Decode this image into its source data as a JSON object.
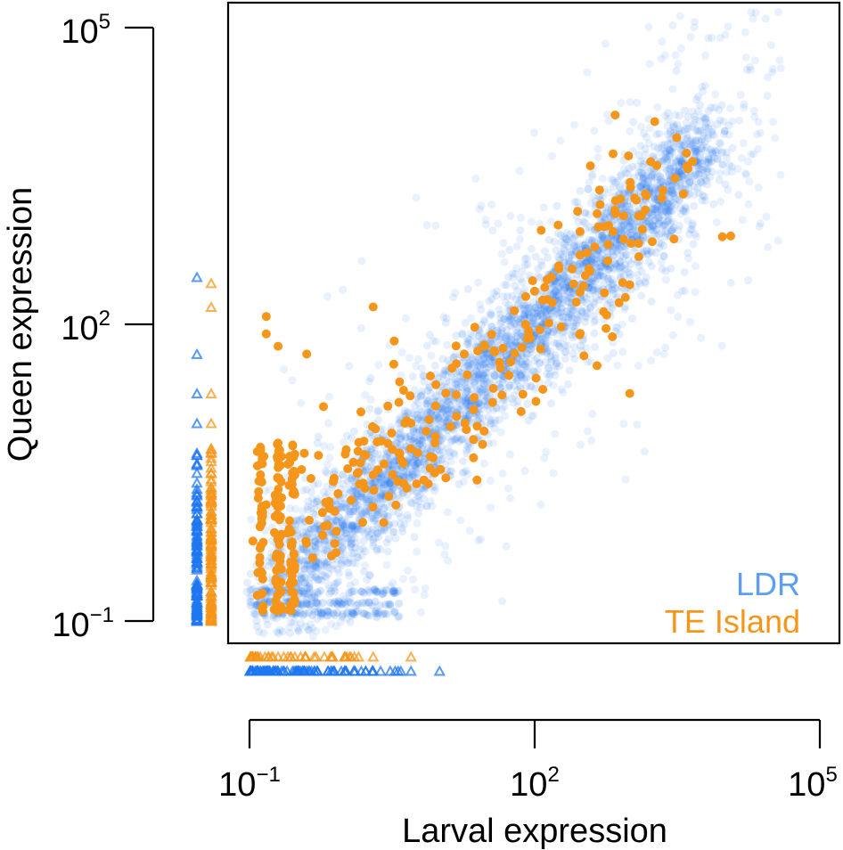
{
  "chart_data": {
    "type": "scatter",
    "title": "",
    "xlabel": "Larval expression",
    "ylabel": "Queen expression",
    "x_scale": "log10",
    "y_scale": "log10",
    "xlim": [
      0.1,
      100000
    ],
    "ylim": [
      0.1,
      100000
    ],
    "x_ticks": [
      {
        "value": 0.1,
        "base": "10",
        "exp": "−1"
      },
      {
        "value": 100,
        "base": "10",
        "exp": "2"
      },
      {
        "value": 100000,
        "base": "10",
        "exp": "5"
      }
    ],
    "y_ticks": [
      {
        "value": 0.1,
        "base": "10",
        "exp": "−1"
      },
      {
        "value": 100,
        "base": "10",
        "exp": "2"
      },
      {
        "value": 100000,
        "base": "10",
        "exp": "5"
      }
    ],
    "grid": false,
    "legend_position": "bottom-right",
    "series": [
      {
        "name": "LDR",
        "color": "#1f77f0",
        "marker": "circle",
        "alpha": 0.15,
        "points": [
          [
            0.5,
            0.4
          ],
          [
            1.2,
            0.9
          ],
          [
            3,
            2.5
          ],
          [
            8,
            7
          ],
          [
            20,
            18
          ],
          [
            50,
            40
          ],
          [
            120,
            100
          ],
          [
            300,
            250
          ],
          [
            800,
            700
          ],
          [
            2000,
            1800
          ],
          [
            5000,
            4500
          ],
          [
            10000,
            9000
          ]
        ],
        "zero_larval_queen_values": [
          0.12,
          0.2,
          0.5,
          1,
          2,
          5,
          10,
          20,
          50,
          300
        ],
        "zero_queen_larval_values": [
          0.12,
          0.2,
          0.4,
          1,
          2,
          5,
          10
        ]
      },
      {
        "name": "TE Island",
        "color": "#f5951a",
        "marker": "circle",
        "alpha": 1,
        "points": [
          [
            0.15,
            1.5
          ],
          [
            0.15,
            80
          ],
          [
            0.15,
            120
          ],
          [
            0.2,
            60
          ],
          [
            0.3,
            3
          ],
          [
            2,
            3
          ],
          [
            5,
            10
          ],
          [
            8,
            30
          ],
          [
            15,
            40
          ],
          [
            30,
            60
          ],
          [
            80,
            100
          ],
          [
            150,
            300
          ],
          [
            300,
            500
          ],
          [
            600,
            1000
          ],
          [
            1500,
            2000
          ],
          [
            3000,
            3000
          ],
          [
            4000,
            4000
          ],
          [
            1000,
            20
          ],
          [
            0.4,
            50
          ],
          [
            2,
            150
          ]
        ],
        "zero_larval_queen_values": [
          0.12,
          0.2,
          0.5,
          1,
          2,
          5,
          10,
          20,
          150,
          260
        ],
        "zero_queen_larval_values": [
          0.12,
          0.2,
          0.3,
          0.5,
          1,
          2,
          5
        ]
      }
    ]
  }
}
